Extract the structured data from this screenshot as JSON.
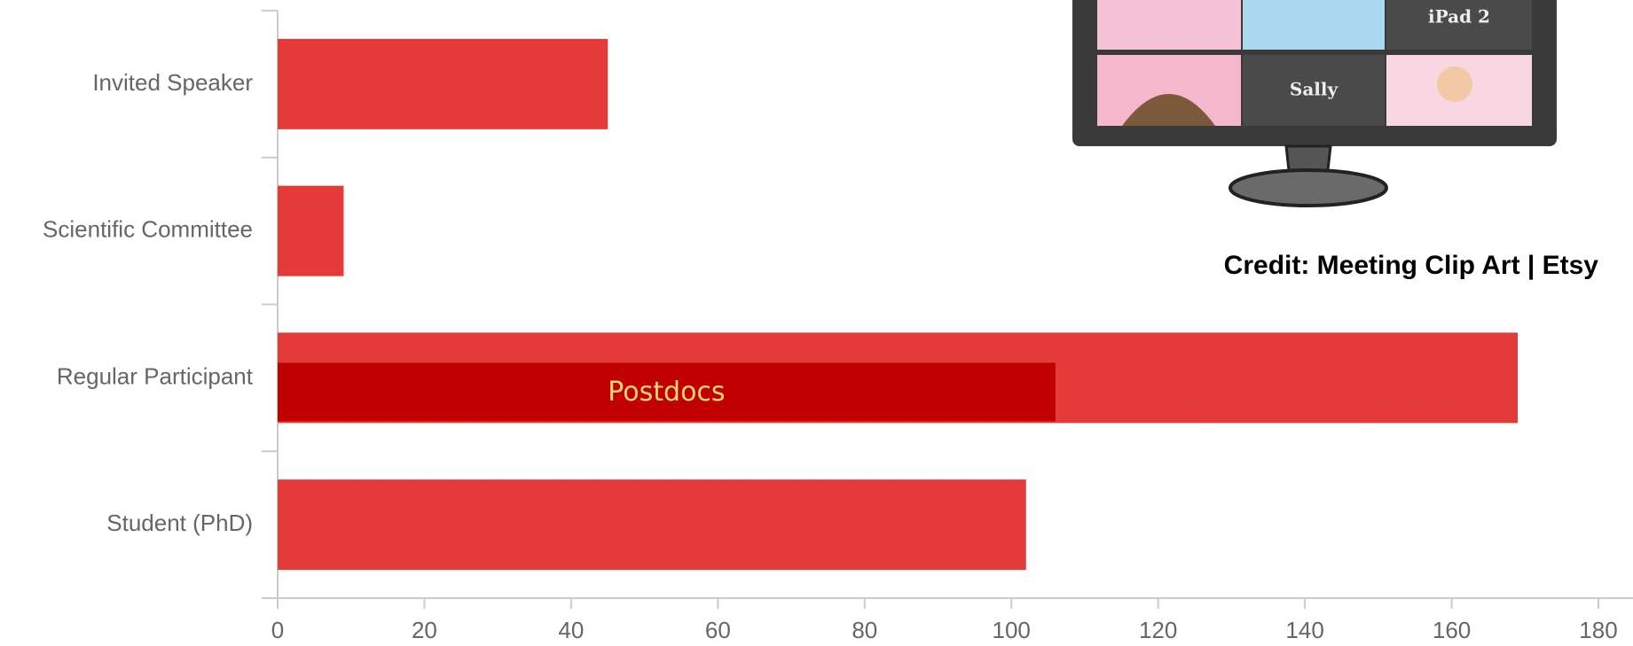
{
  "chart_data": {
    "type": "bar",
    "orientation": "horizontal",
    "categories": [
      "Invited Speaker",
      "Scientific Committee",
      "Regular Participant",
      "Student (PhD)"
    ],
    "series": [
      {
        "values": [
          45,
          9,
          169,
          102
        ],
        "color": "#e43a3a"
      },
      {
        "name": "Postdocs",
        "values": [
          null,
          null,
          106,
          null
        ],
        "color": "#c00000"
      }
    ],
    "xlim": [
      0,
      180
    ],
    "xticks": [
      0,
      20,
      40,
      60,
      80,
      100,
      120,
      140,
      160,
      180
    ]
  },
  "clipart": {
    "labels": [
      "iPad 2",
      "Sally"
    ],
    "credit": "Credit: Meeting Clip Art | Etsy"
  }
}
